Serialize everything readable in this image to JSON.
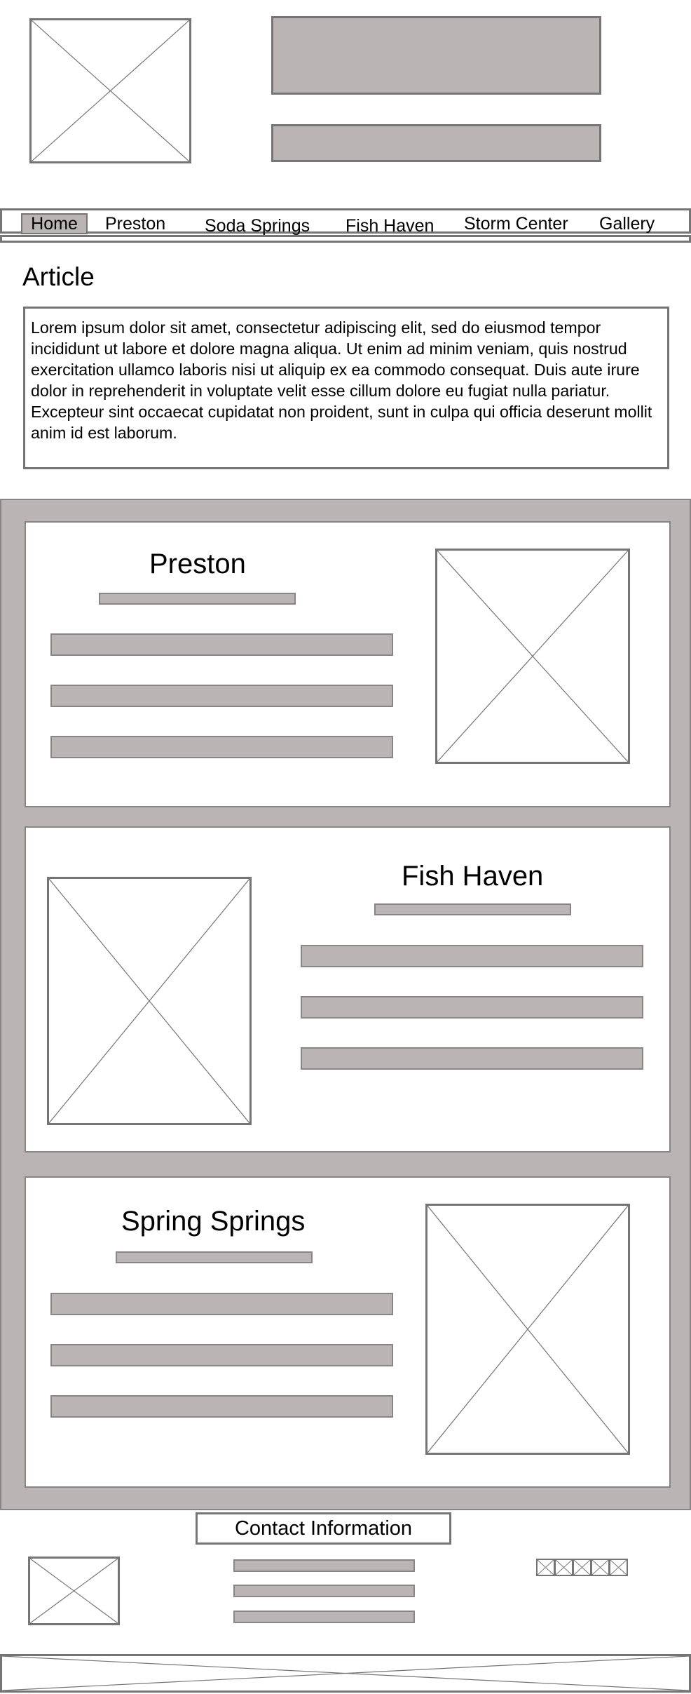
{
  "nav": {
    "items": [
      "Home",
      "Preston",
      "Soda Springs",
      "Fish Haven",
      "Storm Center",
      "Gallery"
    ]
  },
  "article": {
    "title": "Article",
    "body": "Lorem ipsum dolor sit amet, consectetur adipiscing elit, sed do eiusmod tempor incididunt ut labore et dolore magna aliqua. Ut enim ad minim veniam, quis nostrud exercitation ullamco laboris nisi ut aliquip ex ea commodo consequat. Duis aute irure dolor in reprehenderit in voluptate velit esse cillum dolore eu fugiat nulla pariatur. Excepteur sint occaecat cupidatat non proident, sunt in culpa qui officia deserunt mollit anim id est laborum."
  },
  "towns": [
    {
      "title": "Preston"
    },
    {
      "title": "Fish Haven"
    },
    {
      "title": "Spring Springs"
    }
  ],
  "footer": {
    "contact_title": "Contact Information"
  },
  "colors": {
    "placeholder_fill": "#bbb4b4",
    "wire_stroke": "#757575"
  },
  "icons": [
    "image-placeholder-icon",
    "social-media-icon"
  ]
}
